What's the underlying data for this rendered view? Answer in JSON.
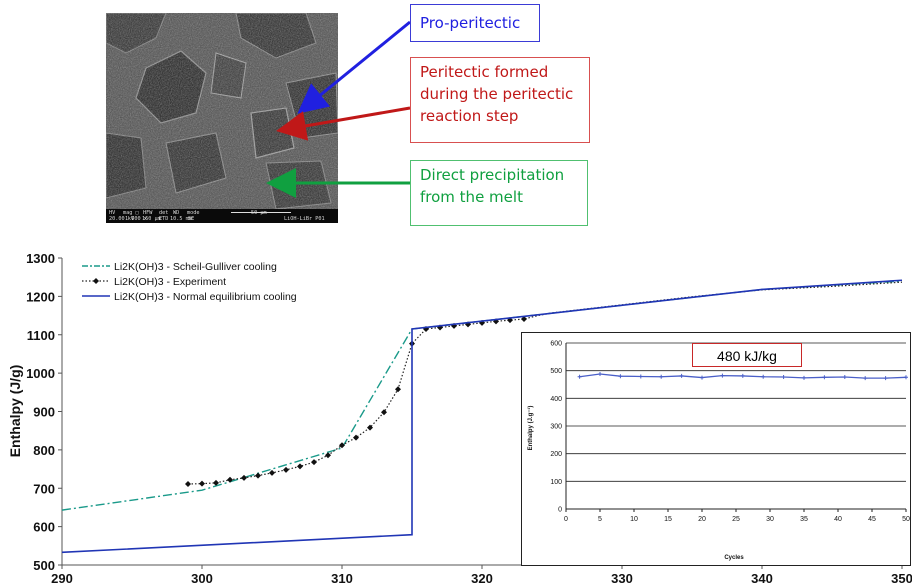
{
  "callouts": {
    "pro": "Pro-peritectic",
    "peritectic": [
      "Peritectic formed",
      "during the peritectic",
      "reaction step"
    ],
    "direct": [
      "Direct precipitation",
      "from the melt"
    ],
    "colors": {
      "blue": "#2020e0",
      "red": "#c01818",
      "green": "#10a040"
    }
  },
  "sem_image": {
    "databar": [
      "HV",
      "mag □",
      "HFW",
      "det",
      "WD",
      "mode",
      "50 µm",
      "20.00 kV",
      "1 600 x",
      "160 µm",
      "ETD",
      "10.5 mm",
      "SE",
      "LiOH-LiBr P01"
    ]
  },
  "chart_data": [
    {
      "type": "line",
      "ylabel": "Enthalpy (J/g)",
      "xlabel": "",
      "xlim": [
        290,
        350
      ],
      "ylim": [
        500,
        1300
      ],
      "x_ticks": [
        290,
        300,
        310,
        320,
        330,
        340,
        350
      ],
      "y_ticks": [
        500,
        600,
        700,
        800,
        900,
        1000,
        1100,
        1200,
        1300
      ],
      "legend_placement": "top-left",
      "series": [
        {
          "name": "Li2K(OH)3 - Scheil-Gulliver cooling",
          "color": "#1a9a8a",
          "style": "dashdot",
          "x": [
            290,
            300,
            310,
            315,
            340,
            350
          ],
          "y": [
            643,
            695,
            805,
            1115,
            1218,
            1240
          ]
        },
        {
          "name": "Li2K(OH)3 - Experiment",
          "color": "#222222",
          "style": "dotted-markers",
          "x": [
            299,
            300,
            301,
            302,
            303,
            304,
            305,
            306,
            307,
            308,
            309,
            310,
            311,
            312,
            313,
            314,
            315,
            316,
            317,
            318,
            319,
            320,
            321,
            322,
            323,
            324,
            325,
            330,
            335,
            340,
            345,
            350
          ],
          "y": [
            711,
            712,
            714,
            722,
            727,
            733,
            740,
            748,
            757,
            768,
            786,
            812,
            832,
            858,
            898,
            958,
            1077,
            1115,
            1119,
            1123,
            1127,
            1131,
            1135,
            1138,
            1141,
            1150,
            1157,
            1178,
            1199,
            1217,
            1226,
            1237
          ]
        },
        {
          "name": "Li2K(OH)3 - Normal equilibrium cooling",
          "color": "#2035b5",
          "style": "solid",
          "x": [
            290,
            315,
            315,
            340,
            350
          ],
          "y": [
            533,
            579,
            1115,
            1218,
            1242
          ]
        }
      ]
    },
    {
      "type": "line",
      "title": "480 kJ/kg",
      "xlabel": "Cycles",
      "ylabel": "Enthalpy (J.g⁻¹)",
      "xlim": [
        0,
        50
      ],
      "ylim": [
        0,
        600
      ],
      "x_ticks": [
        0,
        5,
        10,
        15,
        20,
        25,
        30,
        35,
        40,
        45,
        50
      ],
      "y_ticks": [
        0,
        100,
        200,
        300,
        400,
        500,
        600
      ],
      "grid": true,
      "series": [
        {
          "color": "#4a5fc8",
          "x": [
            2,
            5,
            8,
            11,
            14,
            17,
            20,
            23,
            26,
            29,
            32,
            35,
            38,
            41,
            44,
            47,
            50
          ],
          "y": [
            478,
            488,
            480,
            479,
            478,
            481,
            475,
            482,
            481,
            478,
            477,
            474,
            476,
            477,
            473,
            473,
            476
          ]
        }
      ]
    }
  ]
}
